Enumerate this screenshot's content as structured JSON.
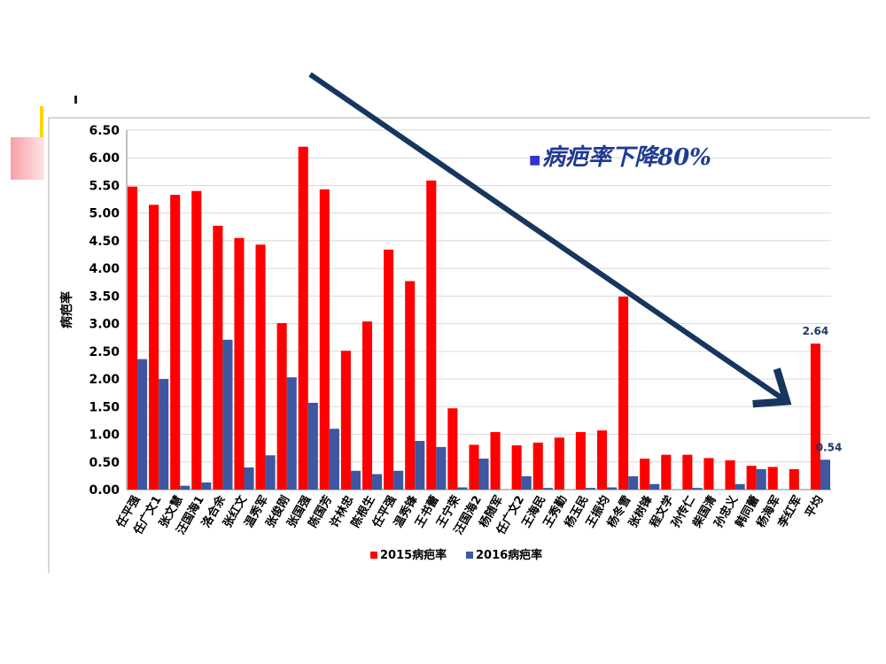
{
  "annotation": {
    "bullet": "■",
    "text": "病疤率下降80%"
  },
  "colors": {
    "s2015": "#ff0000",
    "s2016": "#3f56a1",
    "arrow": "#17365d",
    "grid": "#d9d9d9"
  },
  "chart_data": {
    "type": "bar",
    "ylabel": "病疤率",
    "ylim": [
      0,
      6.5
    ],
    "yticks": [
      "0.00",
      "0.50",
      "1.00",
      "1.50",
      "2.00",
      "2.50",
      "3.00",
      "3.50",
      "4.00",
      "4.50",
      "5.00",
      "5.50",
      "6.00",
      "6.50"
    ],
    "grid": true,
    "legend_position": "bottom",
    "categories": [
      "任平强",
      "任广文1",
      "张文慧",
      "汪国海1",
      "洛合余",
      "张红文",
      "温秀军",
      "张俊刚",
      "张国强",
      "陈国芳",
      "许林忠",
      "陈根生",
      "任平强",
      "温秀锋",
      "王书蕾",
      "王宁荣",
      "汪国海2",
      "杨随军",
      "任广文2",
      "王海民",
      "王秀勤",
      "杨玉民",
      "王振均",
      "杨冬雪",
      "张树锋",
      "程文学",
      "孙传仁",
      "柴国清",
      "孙忠义",
      "韩同蕾",
      "杨海军",
      "李红军",
      "平均"
    ],
    "series": [
      {
        "name": "2015病疤率",
        "values": [
          5.48,
          5.15,
          5.33,
          5.4,
          4.77,
          4.55,
          4.43,
          3.01,
          6.2,
          5.43,
          2.51,
          3.04,
          4.34,
          3.77,
          5.59,
          1.47,
          0.81,
          1.04,
          0.8,
          0.85,
          0.94,
          1.04,
          1.07,
          3.49,
          0.56,
          0.63,
          0.63,
          0.57,
          0.53,
          0.43,
          0.41,
          0.37,
          2.64
        ]
      },
      {
        "name": "2016病疤率",
        "values": [
          2.36,
          2.0,
          0.07,
          0.13,
          2.71,
          0.4,
          0.62,
          2.03,
          1.57,
          1.1,
          0.34,
          0.28,
          0.34,
          0.88,
          0.77,
          0.04,
          0.56,
          0,
          0.24,
          0.03,
          0,
          0.03,
          0.04,
          0.24,
          0.1,
          0,
          0.03,
          0,
          0.1,
          0.37,
          0,
          0,
          0.54
        ]
      }
    ],
    "data_labels": [
      {
        "series": 0,
        "index": 32,
        "text": "2.64"
      },
      {
        "series": 1,
        "index": 32,
        "text": "0.54"
      }
    ]
  }
}
